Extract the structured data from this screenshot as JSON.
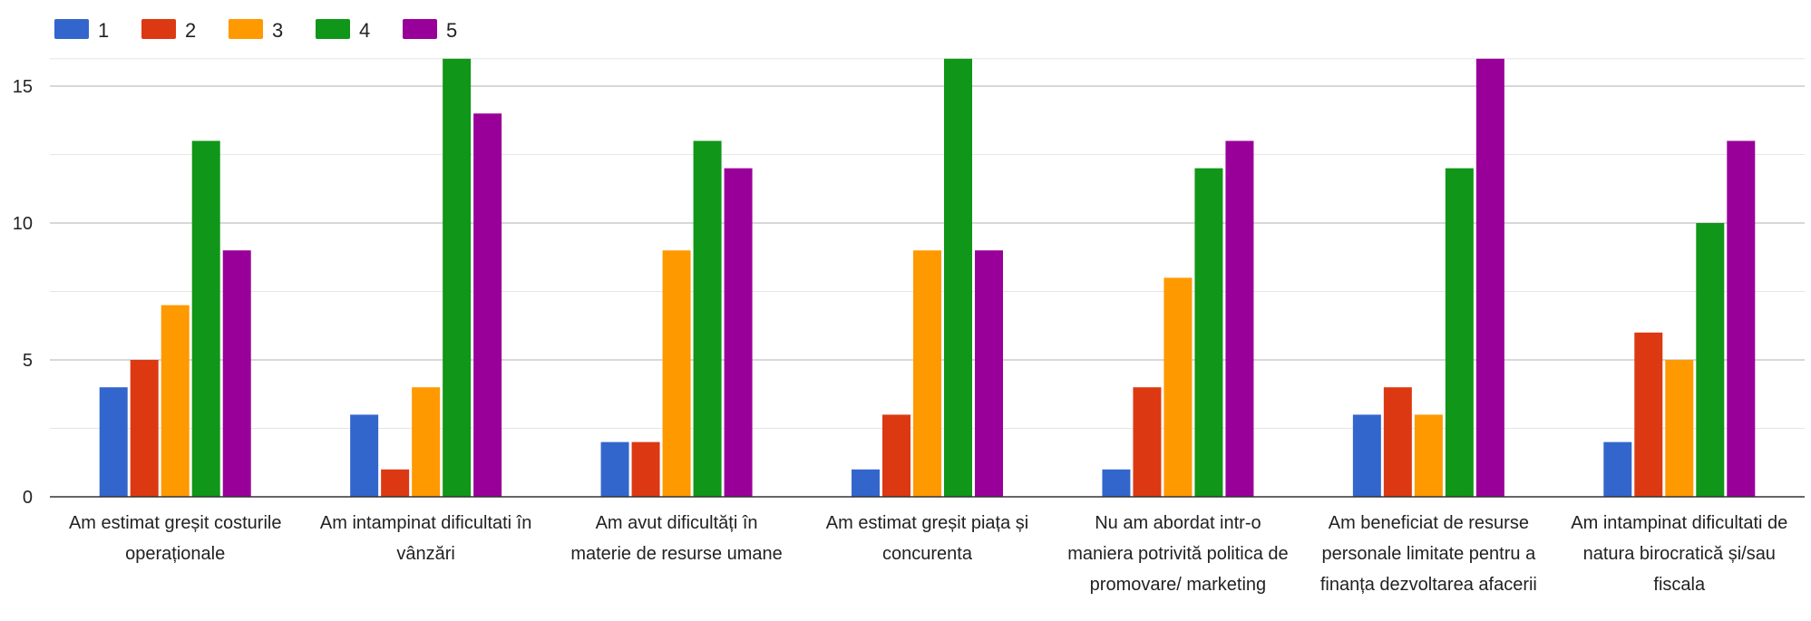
{
  "chart_data": {
    "type": "bar",
    "categories": [
      [
        "Am estimat greșit costurile",
        "operaționale"
      ],
      [
        "Am intampinat dificultati în",
        "vânzări"
      ],
      [
        "Am avut dificultăți în",
        "materie de resurse umane"
      ],
      [
        "Am estimat greșit piața și",
        "concurenta"
      ],
      [
        "Nu am abordat intr-o",
        "maniera potrivită politica de",
        "promovare/ marketing"
      ],
      [
        "Am beneficiat de resurse",
        "personale limitate pentru a",
        "finanța dezvoltarea afacerii"
      ],
      [
        "Am intampinat dificultati de",
        "natura birocratică și/sau",
        "fiscala"
      ]
    ],
    "series": [
      {
        "name": "1",
        "color": "#3366cc",
        "values": [
          4,
          3,
          2,
          1,
          1,
          3,
          2
        ]
      },
      {
        "name": "2",
        "color": "#dc3912",
        "values": [
          5,
          1,
          2,
          3,
          4,
          4,
          6
        ]
      },
      {
        "name": "3",
        "color": "#ff9900",
        "values": [
          7,
          4,
          9,
          9,
          8,
          3,
          5
        ]
      },
      {
        "name": "4",
        "color": "#109618",
        "values": [
          13,
          16,
          13,
          16,
          12,
          12,
          10
        ]
      },
      {
        "name": "5",
        "color": "#990099",
        "values": [
          9,
          14,
          12,
          9,
          13,
          16,
          13
        ]
      }
    ],
    "yticks": [
      0,
      5,
      10,
      15
    ],
    "ylim": [
      0,
      16
    ],
    "grid": true,
    "legend_position": "top-left",
    "gridline_color": "#cccccc",
    "minor_gridline_color": "#e6e6e6",
    "axis_color": "#333333"
  }
}
